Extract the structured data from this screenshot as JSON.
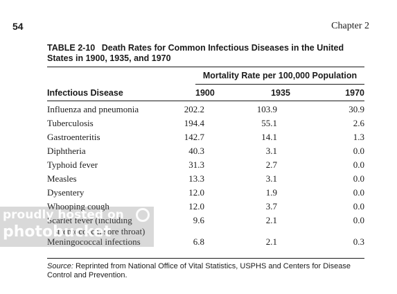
{
  "header": {
    "page_number": "54",
    "chapter": "Chapter 2"
  },
  "table": {
    "label": "TABLE 2-10",
    "title": "Death Rates for Common Infectious Diseases in the United States in 1900, 1935, and 1970",
    "column_span_header": "Mortality Rate per 100,000 Population",
    "columns": [
      "Infectious Disease",
      "1900",
      "1935",
      "1970"
    ],
    "rows": [
      {
        "disease": "Influenza and pneumonia",
        "v1900": "202.2",
        "v1935": "103.9",
        "v1970": "30.9"
      },
      {
        "disease": "Tuberculosis",
        "v1900": "194.4",
        "v1935": "55.1",
        "v1970": "2.6"
      },
      {
        "disease": "Gastroenteritis",
        "v1900": "142.7",
        "v1935": "14.1",
        "v1970": "1.3"
      },
      {
        "disease": "Diphtheria",
        "v1900": "40.3",
        "v1935": "3.1",
        "v1970": "0.0"
      },
      {
        "disease": "Typhoid fever",
        "v1900": "31.3",
        "v1935": "2.7",
        "v1970": "0.0"
      },
      {
        "disease": "Measles",
        "v1900": "13.3",
        "v1935": "3.1",
        "v1970": "0.0"
      },
      {
        "disease": "Dysentery",
        "v1900": "12.0",
        "v1935": "1.9",
        "v1970": "0.0"
      },
      {
        "disease": "Whooping cough",
        "v1900": "12.0",
        "v1935": "3.7",
        "v1970": "0.0"
      },
      {
        "disease": "Scarlet fever (including",
        "disease_line2": "streptococcal sore throat)",
        "v1900": "9.6",
        "v1935": "2.1",
        "v1970": "0.0"
      },
      {
        "disease": "Meningococcal infections",
        "v1900": "6.8",
        "v1935": "2.1",
        "v1970": "0.3"
      }
    ],
    "source_label": "Source:",
    "source_text": "Reprinted from National Office of Vital Statistics, USPHS and Centers for Disease Control and Prevention."
  },
  "watermark": {
    "line1": "proudly hosted on",
    "line2": "photobucket"
  }
}
